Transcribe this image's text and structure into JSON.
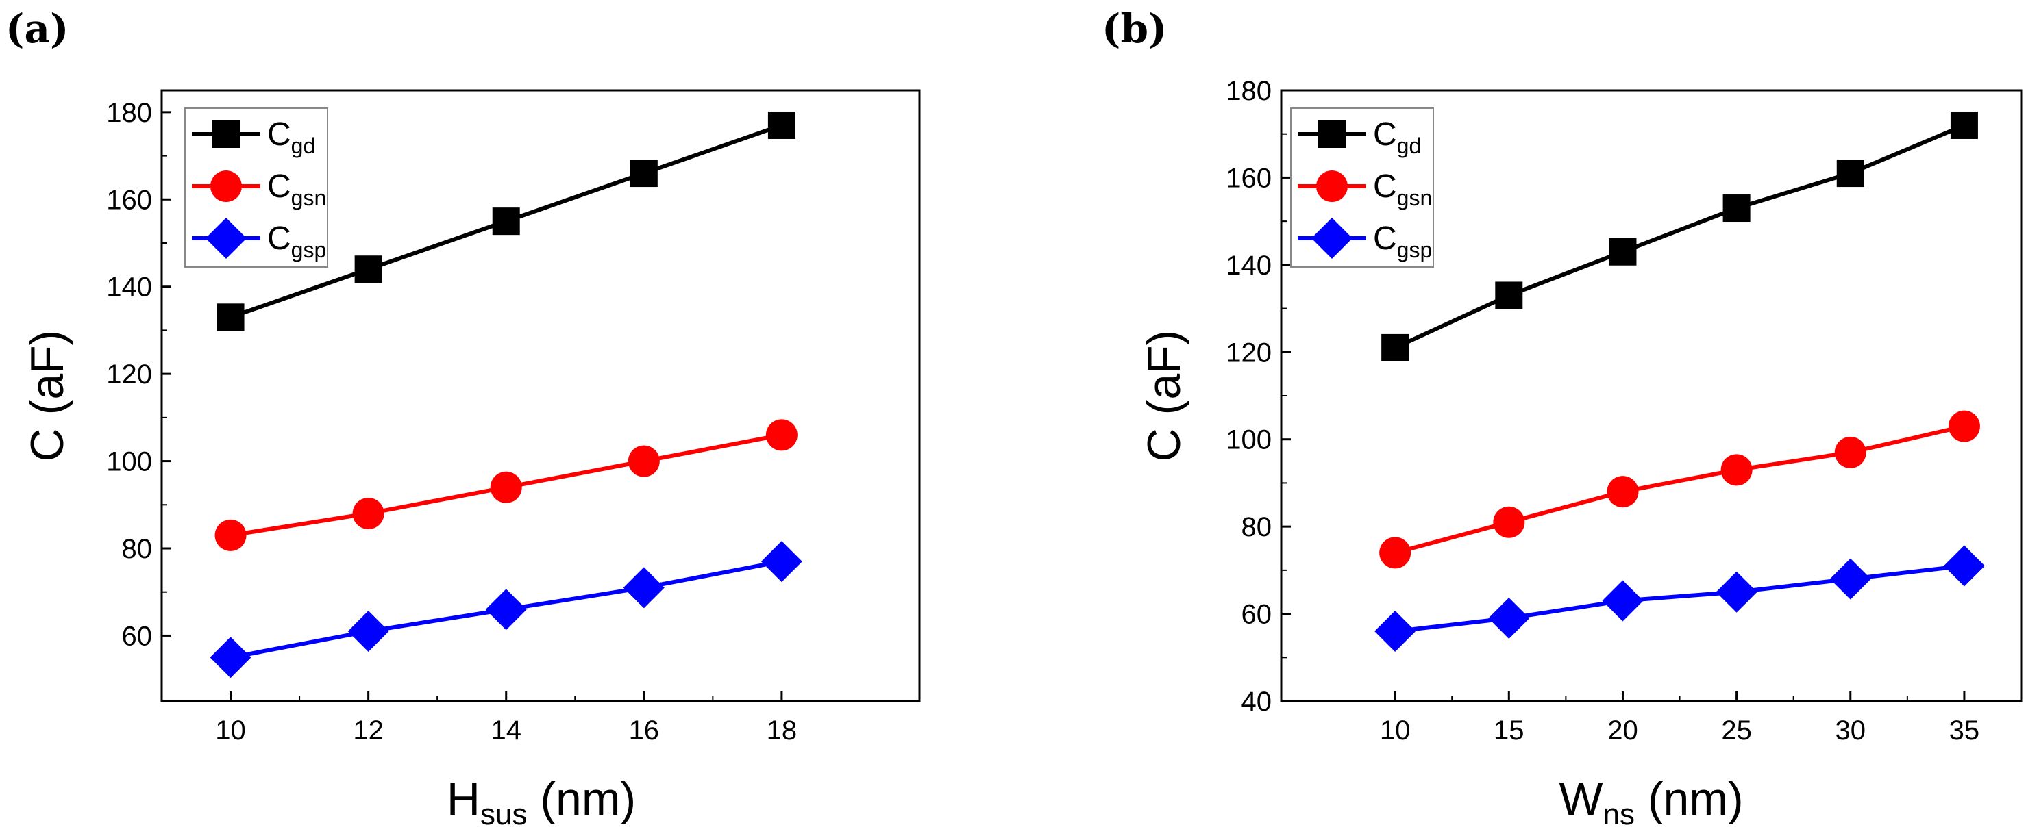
{
  "chart_data": [
    {
      "type": "line",
      "panel_label": "(a)",
      "x": [
        10,
        12,
        14,
        16,
        18
      ],
      "xlim": [
        9,
        20
      ],
      "xticks": [
        10,
        12,
        14,
        16,
        18
      ],
      "xticklabels": [
        "10",
        "12",
        "14",
        "16",
        "18"
      ],
      "ylim": [
        45,
        185
      ],
      "yticks": [
        60,
        80,
        100,
        120,
        140,
        160,
        180
      ],
      "yticklabels": [
        "60",
        "80",
        "100",
        "120",
        "140",
        "160",
        "180"
      ],
      "xlabel": {
        "base": "H",
        "sub": "sus",
        "unit": " (nm)"
      },
      "ylabel": "C (aF)",
      "legend_position": "top-left",
      "series": [
        {
          "name": "C",
          "sub": "gd",
          "color": "#000000",
          "marker": "square",
          "values": [
            133,
            144,
            155,
            166,
            177
          ]
        },
        {
          "name": "C",
          "sub": "gsn",
          "color": "#ff0000",
          "marker": "circle",
          "values": [
            83,
            88,
            94,
            100,
            106
          ]
        },
        {
          "name": "C",
          "sub": "gsp",
          "color": "#0000ff",
          "marker": "diamond",
          "values": [
            55,
            61,
            66,
            71,
            77
          ]
        }
      ]
    },
    {
      "type": "line",
      "panel_label": "(b)",
      "x": [
        10,
        15,
        20,
        25,
        30,
        35
      ],
      "xlim": [
        5,
        37.5
      ],
      "xticks": [
        10,
        15,
        20,
        25,
        30,
        35
      ],
      "xticklabels": [
        "10",
        "15",
        "20",
        "25",
        "30",
        "35"
      ],
      "ylim": [
        40,
        180
      ],
      "yticks": [
        40,
        60,
        80,
        100,
        120,
        140,
        160,
        180
      ],
      "yticklabels": [
        "40",
        "60",
        "80",
        "100",
        "120",
        "140",
        "160",
        "180"
      ],
      "xlabel": {
        "base": "W",
        "sub": "ns",
        "unit": " (nm)"
      },
      "ylabel": "C (aF)",
      "legend_position": "top-left",
      "series": [
        {
          "name": "C",
          "sub": "gd",
          "color": "#000000",
          "marker": "square",
          "values": [
            121,
            133,
            143,
            153,
            161,
            172
          ]
        },
        {
          "name": "C",
          "sub": "gsn",
          "color": "#ff0000",
          "marker": "circle",
          "values": [
            74,
            81,
            88,
            93,
            97,
            103
          ]
        },
        {
          "name": "C",
          "sub": "gsp",
          "color": "#0000ff",
          "marker": "diamond",
          "values": [
            56,
            59,
            63,
            65,
            68,
            71
          ]
        }
      ]
    }
  ]
}
